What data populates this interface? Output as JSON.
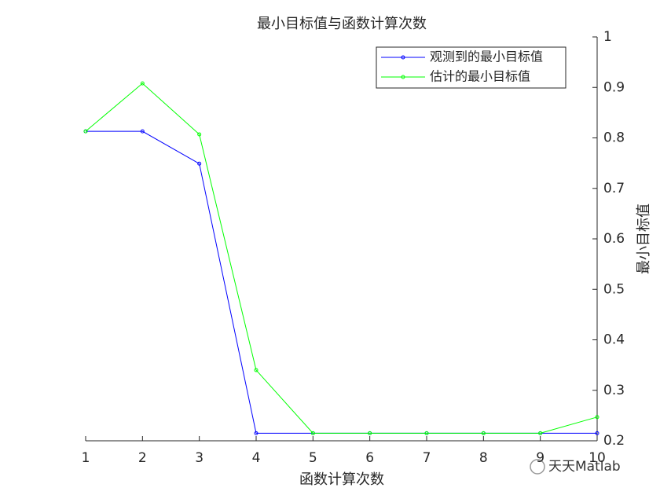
{
  "chart_data": {
    "type": "line",
    "title": "最小目标值与函数计算次数",
    "xlabel": "函数计算次数",
    "ylabel": "最小目标值",
    "x": [
      1,
      2,
      3,
      4,
      5,
      6,
      7,
      8,
      9,
      10
    ],
    "series": [
      {
        "name": "观测到的最小目标值",
        "color": "#0000ff",
        "values": [
          0.813,
          0.813,
          0.749,
          0.215,
          0.215,
          0.215,
          0.215,
          0.215,
          0.215,
          0.215
        ]
      },
      {
        "name": "估计的最小目标值",
        "color": "#00ff00",
        "values": [
          0.813,
          0.908,
          0.807,
          0.34,
          0.215,
          0.215,
          0.215,
          0.215,
          0.215,
          0.247
        ]
      }
    ],
    "xlim": [
      1,
      10
    ],
    "xticks": [
      1,
      2,
      3,
      4,
      5,
      6,
      7,
      8,
      9,
      10
    ],
    "ylim": [
      0.2,
      1
    ],
    "yticks": [
      0.2,
      0.3,
      0.4,
      0.5,
      0.6,
      0.7,
      0.8,
      0.9,
      1
    ],
    "legend": "northeast",
    "watermark": "天天Matlab"
  }
}
